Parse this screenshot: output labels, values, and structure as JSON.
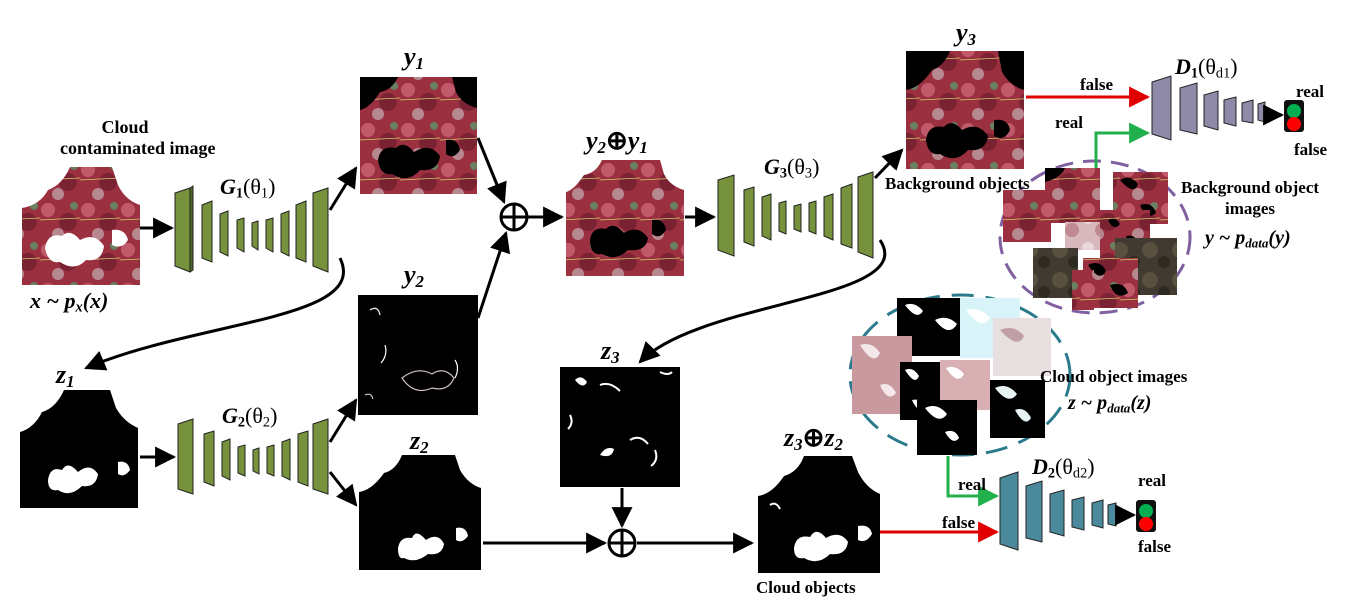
{
  "labels": {
    "cloud_contaminated_1": "Cloud",
    "cloud_contaminated_2": "contaminated image",
    "x_dist": "x ~ p",
    "x_dist_sub": "x",
    "x_dist_arg": "(x)",
    "y1": "y",
    "y1_sub": "1",
    "y2": "y",
    "y2_sub": "2",
    "y3": "y",
    "y3_sub": "3",
    "z1": "z",
    "z1_sub": "1",
    "z2": "z",
    "z2_sub": "2",
    "z3": "z",
    "z3_sub": "3",
    "y2_oplus_y1_a": "y",
    "y2_oplus_y1_a_sub": "2",
    "oplus": "⊕",
    "y2_oplus_y1_b": "y",
    "y2_oplus_y1_b_sub": "1",
    "z3_oplus_z2_a": "z",
    "z3_oplus_z2_a_sub": "3",
    "z3_oplus_z2_b": "z",
    "z3_oplus_z2_b_sub": "2",
    "g1": "G",
    "g1_sub": "1",
    "g1_theta": "(θ",
    "g1_theta_sub": "1",
    "g2": "G",
    "g2_sub": "2",
    "g2_theta": "(θ",
    "g2_theta_sub": "2",
    "g3": "G",
    "g3_sub": "3",
    "g3_theta": "(θ",
    "g3_theta_sub": "3",
    "d1": "D",
    "d1_sub": "1",
    "d1_theta": "(θ",
    "d1_theta_sub": "d1",
    "d2": "D",
    "d2_sub": "2",
    "d2_theta": "(θ",
    "d2_theta_sub": "d2",
    "close_paren": ")",
    "background_objects": "Background objects",
    "background_object_images_1": "Background object",
    "background_object_images_2": "images",
    "y_dist": "y ~ p",
    "y_dist_sub": "data",
    "y_dist_arg": "(y)",
    "cloud_object_images": "Cloud object  images",
    "z_dist": "z ~ p",
    "z_dist_sub": "data",
    "z_dist_arg": "(z)",
    "cloud_objects": "Cloud objects",
    "false_d1": "false",
    "real_d1": "real",
    "false_d2": "false",
    "real_d2": "real",
    "out_real_d1": "real",
    "out_false_d1": "false",
    "out_real_d2": "real",
    "out_false_d2": "false"
  },
  "colors": {
    "generator_green": "#76923c",
    "discriminator1_purple": "#8e8aa8",
    "discriminator2_teal": "#4a8a9c",
    "arrow_red": "#e00000",
    "arrow_green": "#22b04c",
    "dashed_purple": "#8060a0",
    "dashed_teal": "#2a7a8c",
    "light_green": "#00b050",
    "light_red": "#ff0000"
  },
  "icons": [
    "direct-sum-icon",
    "traffic-light-icon"
  ]
}
